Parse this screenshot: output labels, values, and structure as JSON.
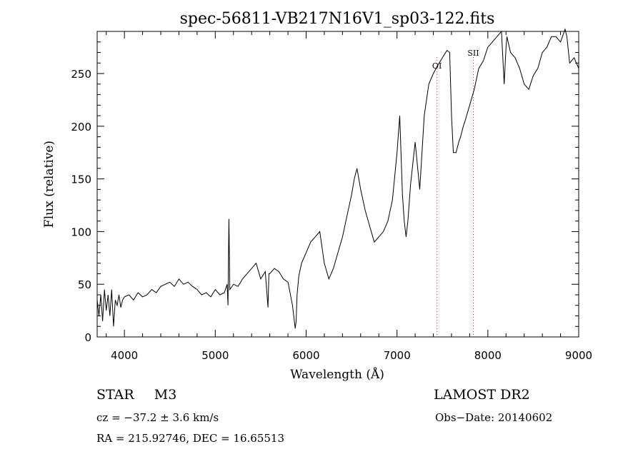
{
  "chart_data": {
    "type": "line",
    "title": "spec-56811-VB217N16V1_sp03-122.fits",
    "xlabel": "Wavelength (Å)",
    "ylabel": "Flux (relative)",
    "xlim": [
      3700,
      9000
    ],
    "ylim": [
      0,
      290
    ],
    "xticks": [
      4000,
      5000,
      6000,
      7000,
      8000,
      9000
    ],
    "yticks": [
      0,
      50,
      100,
      150,
      200,
      250
    ],
    "grid": false,
    "series": [
      {
        "color": "#000000",
        "x": [
          3700,
          3720,
          3740,
          3760,
          3780,
          3800,
          3820,
          3840,
          3860,
          3880,
          3900,
          3920,
          3940,
          3960,
          3980,
          4000,
          4050,
          4100,
          4150,
          4200,
          4250,
          4300,
          4350,
          4400,
          4450,
          4500,
          4550,
          4600,
          4650,
          4700,
          4750,
          4800,
          4850,
          4900,
          4950,
          5000,
          5050,
          5100,
          5130,
          5140,
          5150,
          5160,
          5200,
          5250,
          5300,
          5350,
          5400,
          5450,
          5500,
          5550,
          5580,
          5590,
          5600,
          5650,
          5700,
          5750,
          5800,
          5850,
          5880,
          5890,
          5900,
          5920,
          5950,
          6000,
          6050,
          6100,
          6150,
          6200,
          6250,
          6300,
          6350,
          6400,
          6450,
          6500,
          6530,
          6560,
          6600,
          6650,
          6700,
          6750,
          6800,
          6850,
          6900,
          6950,
          7000,
          7030,
          7060,
          7080,
          7100,
          7120,
          7150,
          7200,
          7250,
          7300,
          7350,
          7400,
          7450,
          7500,
          7550,
          7580,
          7600,
          7620,
          7650,
          7680,
          7700,
          7730,
          7750,
          7800,
          7850,
          7900,
          7950,
          8000,
          8050,
          8100,
          8150,
          8180,
          8200,
          8210,
          8250,
          8300,
          8350,
          8400,
          8450,
          8500,
          8550,
          8600,
          8650,
          8700,
          8750,
          8800,
          8850,
          8870,
          8900,
          8950,
          9000
        ],
        "values": [
          35,
          20,
          40,
          15,
          45,
          25,
          40,
          20,
          45,
          10,
          35,
          30,
          40,
          28,
          35,
          38,
          40,
          35,
          42,
          38,
          40,
          45,
          42,
          48,
          50,
          52,
          48,
          55,
          50,
          52,
          48,
          45,
          40,
          42,
          38,
          45,
          40,
          42,
          50,
          30,
          112,
          45,
          50,
          48,
          55,
          60,
          65,
          70,
          55,
          62,
          28,
          60,
          60,
          65,
          62,
          55,
          52,
          30,
          8,
          15,
          40,
          58,
          70,
          80,
          90,
          95,
          100,
          70,
          55,
          65,
          80,
          95,
          115,
          135,
          150,
          160,
          140,
          120,
          105,
          90,
          95,
          100,
          110,
          130,
          175,
          210,
          135,
          110,
          95,
          110,
          145,
          185,
          140,
          210,
          240,
          250,
          258,
          265,
          272,
          270,
          210,
          175,
          175,
          185,
          190,
          200,
          205,
          220,
          235,
          255,
          262,
          275,
          280,
          285,
          290,
          240,
          275,
          285,
          270,
          265,
          255,
          240,
          235,
          248,
          255,
          270,
          275,
          285,
          285,
          280,
          292,
          285,
          260,
          265,
          255
        ]
      }
    ],
    "annotations": [
      {
        "label": "OI",
        "x": 7440
      },
      {
        "label": "SII",
        "x": 7840
      }
    ]
  },
  "info": {
    "object_class": "STAR",
    "subclass": "M3",
    "survey": "LAMOST DR2",
    "cz": "cz = −37.2 ± 3.6 km/s",
    "obs_date": "Obs−Date: 20140602",
    "coords": "RA = 215.92746, DEC =  16.65513"
  }
}
